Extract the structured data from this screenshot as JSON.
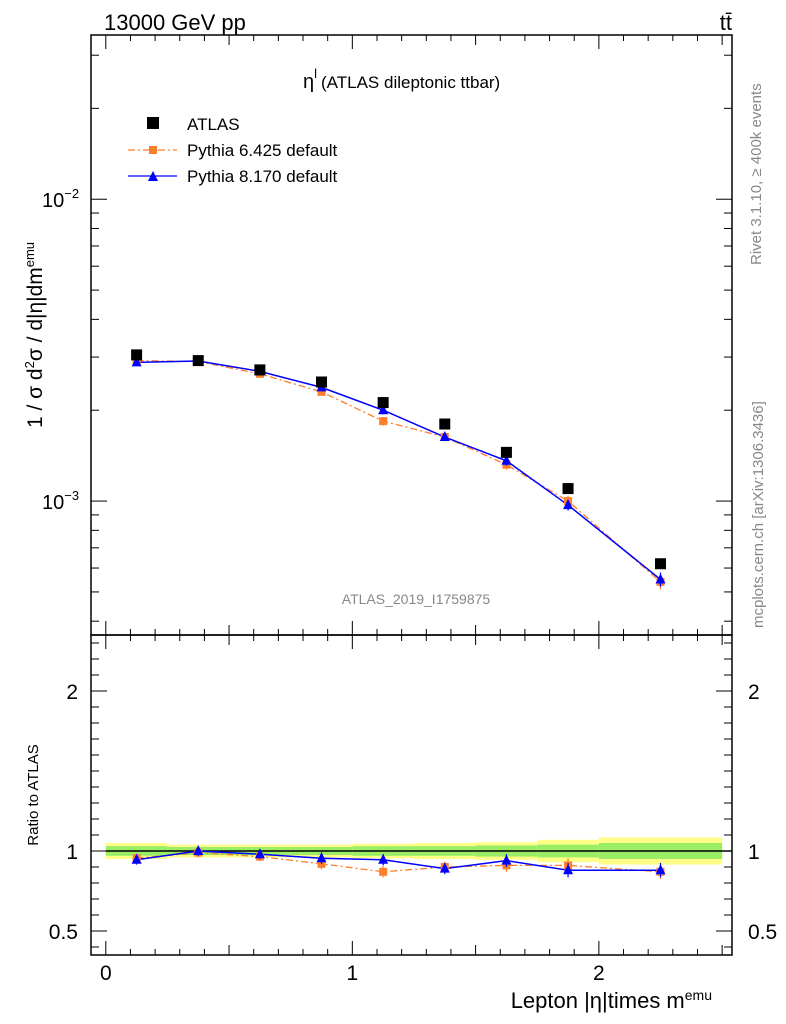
{
  "header": {
    "left": "13000 GeV pp",
    "right": "tt̄"
  },
  "side_labels": {
    "rivet": "Rivet 3.1.10, ≥ 400k events",
    "mcplots": "mcplots.cern.ch [arXiv:1306.3436]"
  },
  "plot_title": {
    "symbol": "η",
    "superscript": "l",
    "text": "(ATLAS dileptonic ttbar)"
  },
  "watermark": "ATLAS_2019_I1759875",
  "colors": {
    "data": "#000000",
    "pythia6": "#ff7f2a",
    "pythia8": "#0000ff",
    "band_inner": "#99ee66",
    "band_outer": "#ffff88"
  },
  "chart_data": [
    {
      "type": "scatter",
      "panel": "main",
      "ylabel": "1 / σ d²σ / d|η|dm^emu",
      "y_scale": "log",
      "ylim": [
        0.00036,
        0.035
      ],
      "xlim": [
        -0.06,
        2.54
      ],
      "y_tick_labels": [
        {
          "value": 0.01,
          "base": "10",
          "exp": "−2"
        },
        {
          "value": 0.001,
          "base": "10",
          "exp": "−3"
        }
      ],
      "legend_position": "top-left",
      "series": [
        {
          "name": "ATLAS",
          "style": "square markers",
          "x": [
            0.125,
            0.375,
            0.625,
            0.875,
            1.125,
            1.375,
            1.625,
            1.875,
            2.25
          ],
          "y": [
            0.00305,
            0.00292,
            0.00272,
            0.00248,
            0.00212,
            0.0018,
            0.00145,
            0.0011,
            0.00062
          ]
        },
        {
          "name": "Pythia 6.425 default",
          "style": "dash-dot line, square markers",
          "x": [
            0.125,
            0.375,
            0.625,
            0.875,
            1.125,
            1.375,
            1.625,
            1.875,
            2.25
          ],
          "y": [
            0.00292,
            0.0029,
            0.00264,
            0.0023,
            0.00184,
            0.00163,
            0.00132,
            0.001,
            0.00054
          ],
          "yerr": [
            6e-05,
            6e-05,
            6e-05,
            6e-05,
            6e-05,
            5e-05,
            5e-05,
            4e-05,
            3e-05
          ]
        },
        {
          "name": "Pythia 8.170 default",
          "style": "solid line, triangle markers",
          "x": [
            0.125,
            0.375,
            0.625,
            0.875,
            1.125,
            1.375,
            1.625,
            1.875,
            2.25
          ],
          "y": [
            0.00288,
            0.00291,
            0.00269,
            0.00238,
            0.002,
            0.00163,
            0.00136,
            0.00097,
            0.00055
          ],
          "yerr": [
            6e-05,
            6e-05,
            6e-05,
            6e-05,
            6e-05,
            5e-05,
            5e-05,
            4e-05,
            3e-05
          ]
        }
      ]
    },
    {
      "type": "scatter",
      "panel": "ratio",
      "xlabel": "Lepton |η|times m^emu",
      "ylabel": "Ratio to ATLAS",
      "xlim": [
        -0.06,
        2.54
      ],
      "ylim": [
        0.35,
        2.35
      ],
      "x_tick_labels": [
        {
          "value": 0,
          "label": "0"
        },
        {
          "value": 1,
          "label": "1"
        },
        {
          "value": 2,
          "label": "2"
        }
      ],
      "y_tick_labels": [
        {
          "value": 2,
          "label": "2"
        },
        {
          "value": 1,
          "label": "1"
        },
        {
          "value": 0.5,
          "label": "0.5"
        }
      ],
      "reference": 1.0,
      "band": {
        "x_edges": [
          0,
          0.25,
          0.5,
          0.75,
          1.0,
          1.25,
          1.5,
          1.75,
          2.0,
          2.5
        ],
        "inner": [
          0.03,
          0.025,
          0.025,
          0.025,
          0.03,
          0.03,
          0.035,
          0.04,
          0.05
        ],
        "outer": [
          0.05,
          0.04,
          0.04,
          0.04,
          0.045,
          0.05,
          0.055,
          0.07,
          0.085
        ]
      },
      "series": [
        {
          "name": "Pythia 6.425 default",
          "x": [
            0.125,
            0.375,
            0.625,
            0.875,
            1.125,
            1.375,
            1.625,
            1.875,
            2.25
          ],
          "y": [
            0.955,
            0.99,
            0.965,
            0.92,
            0.87,
            0.9,
            0.91,
            0.91,
            0.87
          ],
          "yerr": [
            0.03,
            0.03,
            0.03,
            0.035,
            0.035,
            0.035,
            0.04,
            0.045,
            0.045
          ]
        },
        {
          "name": "Pythia 8.170 default",
          "x": [
            0.125,
            0.375,
            0.625,
            0.875,
            1.125,
            1.375,
            1.625,
            1.875,
            2.25
          ],
          "y": [
            0.945,
            1.0,
            0.98,
            0.955,
            0.945,
            0.89,
            0.94,
            0.88,
            0.88
          ],
          "yerr": [
            0.03,
            0.03,
            0.03,
            0.035,
            0.035,
            0.035,
            0.04,
            0.045,
            0.045
          ]
        }
      ]
    }
  ]
}
